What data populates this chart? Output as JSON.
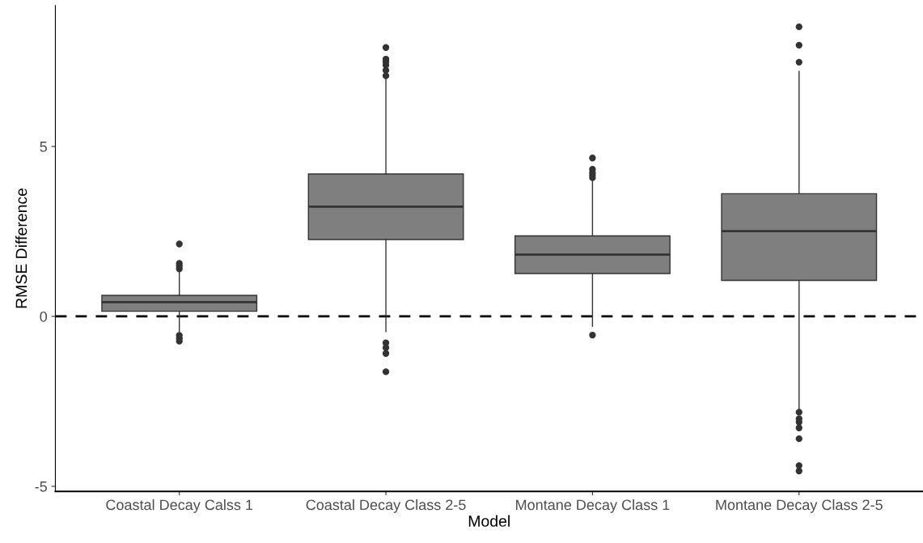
{
  "chart_data": {
    "type": "box",
    "xlabel": "Model",
    "ylabel": "RMSE Difference",
    "categories": [
      "Coastal Decay Calss 1",
      "Coastal Decay Class 2-5",
      "Montane Decay Class 1",
      "Montane Decay Class 2-5"
    ],
    "color": "#7f7f7f",
    "boxes": [
      {
        "low": -0.44,
        "q1": 0.15,
        "median": 0.42,
        "q3": 0.62,
        "high": 1.36,
        "outliers": [
          1.4,
          1.48,
          1.56,
          2.13,
          -0.56,
          -0.65,
          -0.73
        ]
      },
      {
        "low": -0.45,
        "q1": 2.26,
        "median": 3.23,
        "q3": 4.19,
        "high": 7.05,
        "outliers": [
          7.08,
          7.24,
          7.39,
          7.49,
          7.57,
          7.91,
          -0.78,
          -0.92,
          -1.09,
          -1.63
        ]
      },
      {
        "low": -0.29,
        "q1": 1.26,
        "median": 1.82,
        "q3": 2.37,
        "high": 4.04,
        "outliers": [
          4.08,
          4.16,
          4.23,
          4.33,
          4.66,
          -0.55
        ]
      },
      {
        "low": -2.77,
        "q1": 1.06,
        "median": 2.51,
        "q3": 3.61,
        "high": 7.21,
        "outliers": [
          7.48,
          7.98,
          8.52,
          -2.82,
          -3.01,
          -3.11,
          -3.28,
          -3.6,
          -4.39,
          -4.55
        ]
      }
    ],
    "ylim": [
      -5.15,
      9.15
    ],
    "yticks": [
      {
        "value": -5,
        "label": "-5"
      },
      0,
      5
    ],
    "ref_lines": [
      {
        "axis": "y",
        "value": 0,
        "color": "#000000",
        "line_style": "dashed"
      }
    ],
    "grid": false
  }
}
